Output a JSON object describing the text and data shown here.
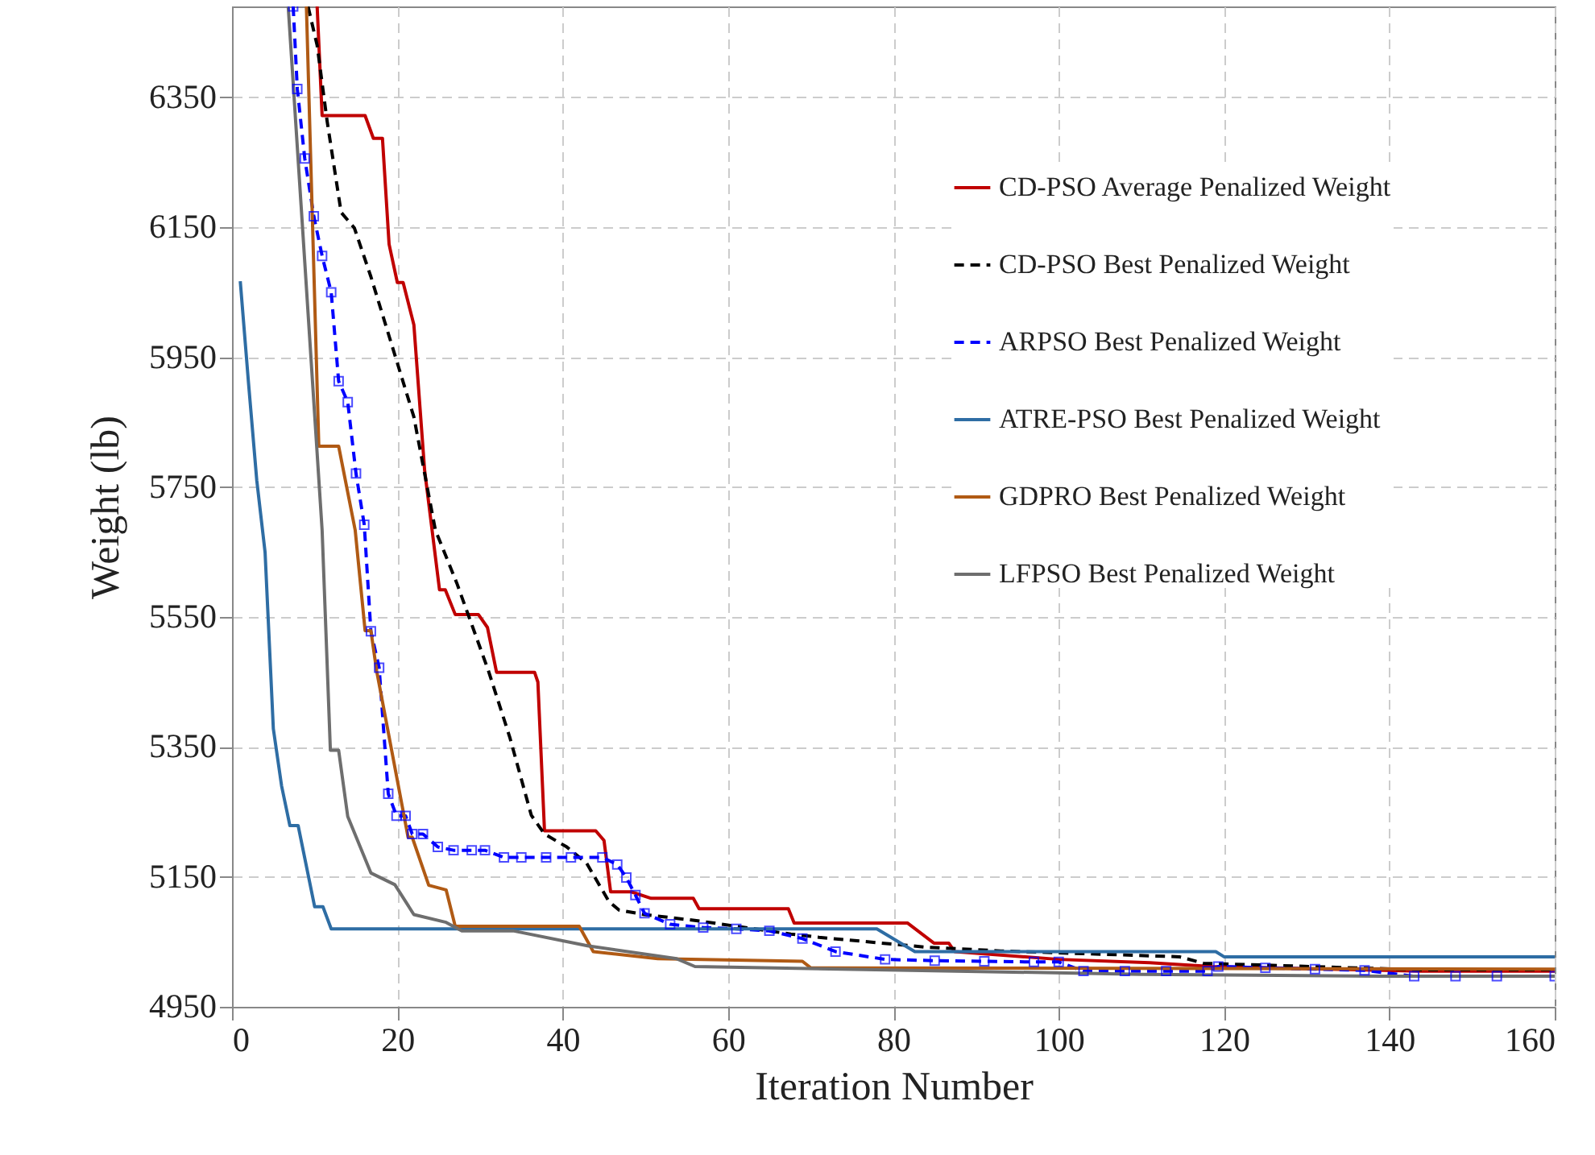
{
  "chart_data": {
    "type": "line",
    "xlabel": "Iteration Number",
    "ylabel": "Weight (lb)",
    "xlim": [
      0,
      160
    ],
    "ylim": [
      4950,
      6490
    ],
    "xticks": [
      0,
      20,
      40,
      60,
      80,
      100,
      120,
      140,
      160
    ],
    "yticks": [
      4950,
      5150,
      5350,
      5550,
      5750,
      5950,
      6150,
      6350
    ],
    "grid": true,
    "legend": "top right",
    "series": [
      {
        "name": "CD-PSO Average Penalized Weight",
        "color": "#c00000",
        "line_style": "solid",
        "marker": "none",
        "x": [
          10.3,
          10.9,
          16.1,
          17.1,
          18.2,
          19,
          20,
          20.7,
          22,
          23.3,
          24.2,
          25.1,
          25.8,
          27,
          29.8,
          30.9,
          32,
          36.6,
          37,
          37.8,
          44,
          45,
          45.8,
          48.3,
          50.7,
          55.8,
          56.5,
          67.3,
          68,
          81.7,
          84.9,
          86.7,
          87.4,
          100,
          111,
          118.5,
          143.8,
          160
        ],
        "values": [
          6490,
          6322,
          6322,
          6287,
          6287,
          6124,
          6065,
          6065,
          6000,
          5776,
          5684,
          5592,
          5592,
          5554,
          5554,
          5534,
          5465,
          5465,
          5450,
          5221,
          5221,
          5206,
          5127,
          5127,
          5117,
          5117,
          5101,
          5101,
          5079,
          5079,
          5048,
          5048,
          5035,
          5023,
          5018,
          5012,
          5005,
          5005
        ]
      },
      {
        "name": "CD-PSO Best Penalized Weight",
        "color": "#000000",
        "line_style": "dashed",
        "marker": "none",
        "x": [
          9.2,
          10.3,
          11.5,
          13.2,
          14.8,
          16.8,
          20,
          22,
          24.6,
          27.2,
          31,
          33.6,
          36.2,
          37.8,
          40.5,
          42.9,
          45.6,
          46.8,
          49.9,
          56.6,
          67.6,
          71,
          83.8,
          93,
          114.6,
          117.5,
          143.5,
          160
        ],
        "values": [
          6490,
          6430,
          6314,
          6173,
          6149,
          6074,
          5941,
          5858,
          5684,
          5602,
          5468,
          5365,
          5245,
          5216,
          5196,
          5171,
          5112,
          5099,
          5092,
          5082,
          5062,
          5057,
          5042,
          5036,
          5027,
          5017,
          5007,
          5007
        ]
      },
      {
        "name": "ARPSO Best Penalized Weight",
        "color": "#0000ff",
        "line_style": "dashed",
        "marker": "square",
        "x": [
          7.4,
          7.9,
          8.8,
          9.9,
          10.9,
          12,
          12.9,
          14,
          15,
          16,
          16.8,
          17.8,
          18.9,
          19.9,
          21,
          21.8,
          23.1,
          24.9,
          26.8,
          29,
          30.6,
          32.9,
          35,
          38,
          41,
          44.8,
          46.6,
          47.7,
          48.8,
          49.9,
          53,
          57,
          61,
          65,
          69,
          73,
          79,
          85,
          91,
          97,
          100,
          103,
          108,
          113,
          118,
          119.3,
          125,
          131,
          137,
          143,
          148,
          153,
          160
        ],
        "values": [
          6490,
          6363,
          6256,
          6167,
          6106,
          6050,
          5913,
          5881,
          5771,
          5692,
          5528,
          5472,
          5278,
          5244,
          5244,
          5216,
          5216,
          5196,
          5191,
          5191,
          5191,
          5180,
          5180,
          5180,
          5180,
          5180,
          5169,
          5149,
          5122,
          5094,
          5077,
          5072,
          5070,
          5067,
          5055,
          5035,
          5023,
          5021,
          5020,
          5019,
          5019,
          5005,
          5005,
          5005,
          5005,
          5012,
          5010,
          5008,
          5006,
          4997,
          4997,
          4997,
          4997
        ]
      },
      {
        "name": "ATRE-PSO Best Penalized Weight",
        "color": "#2e6da4",
        "line_style": "solid",
        "marker": "none",
        "x": [
          1,
          2,
          3,
          4,
          5,
          6,
          7,
          8,
          10,
          11,
          12,
          78,
          82.6,
          119,
          120,
          160
        ],
        "values": [
          6067,
          5910,
          5760,
          5650,
          5378,
          5290,
          5229,
          5229,
          5104,
          5104,
          5070,
          5070,
          5035,
          5035,
          5027,
          5027
        ]
      },
      {
        "name": "GDPRO Best Penalized Weight",
        "color": "#b05a14",
        "line_style": "solid",
        "marker": "none",
        "x": [
          9,
          10.5,
          12.9,
          14.9,
          16.1,
          16.8,
          17.5,
          21.3,
          21.8,
          23.8,
          25.9,
          27,
          42,
          43.7,
          51.5,
          69,
          70,
          160
        ],
        "values": [
          6490,
          5813,
          5813,
          5684,
          5529,
          5529,
          5467,
          5211,
          5211,
          5137,
          5130,
          5074,
          5074,
          5035,
          5024,
          5020,
          5010,
          5008
        ]
      },
      {
        "name": "LFPSO Best Penalized Weight",
        "color": "#6e6e6e",
        "line_style": "solid",
        "marker": "none",
        "x": [
          6.8,
          10.9,
          11.9,
          12.9,
          14,
          16.8,
          19.7,
          22,
          25.9,
          27.8,
          34,
          43,
          53.8,
          56,
          110,
          139,
          160
        ],
        "values": [
          6490,
          5684,
          5345,
          5345,
          5243,
          5156,
          5138,
          5092,
          5080,
          5067,
          5067,
          5044,
          5024,
          5012,
          5000,
          4997,
          4997
        ]
      }
    ]
  }
}
